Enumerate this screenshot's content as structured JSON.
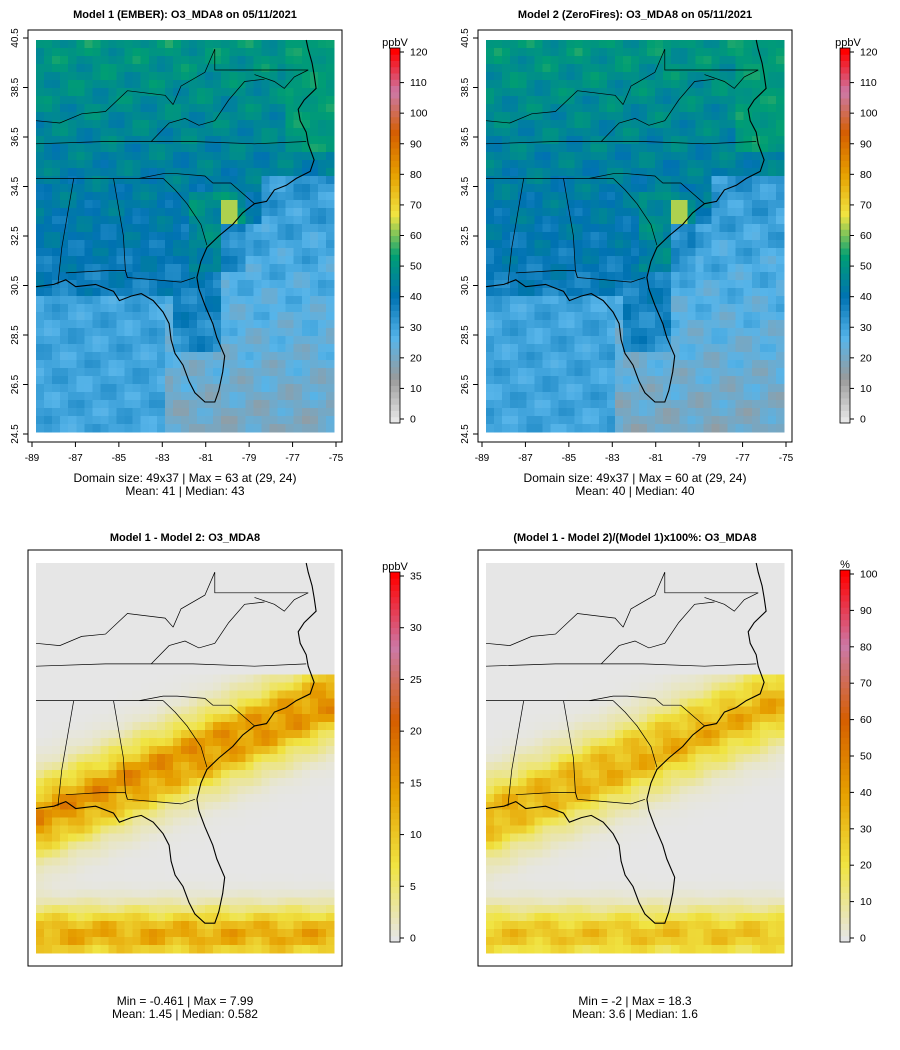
{
  "panels": [
    {
      "title": "Model 1 (EMBER): O3_MDA8 on 05/11/2021",
      "kind": "conc",
      "show_axes": true,
      "colorbar": {
        "unit": "ppbV",
        "ticks": [
          "0",
          "10",
          "20",
          "30",
          "40",
          "50",
          "60",
          "70",
          "80",
          "90",
          "100",
          "110",
          "120"
        ],
        "max": 120
      },
      "stats": {
        "line1": "Domain size: 49x37 | Max = 63 at (29, 24)",
        "line2": "Mean: 41 |  Median: 43"
      },
      "field": {
        "mean": 41,
        "max": 63
      }
    },
    {
      "title": "Model 2 (ZeroFires): O3_MDA8 on 05/11/2021",
      "kind": "conc",
      "show_axes": true,
      "colorbar": {
        "unit": "ppbV",
        "ticks": [
          "0",
          "10",
          "20",
          "30",
          "40",
          "50",
          "60",
          "70",
          "80",
          "90",
          "100",
          "110",
          "120"
        ],
        "max": 120
      },
      "stats": {
        "line1": "Domain size: 49x37 | Max = 60 at (29, 24)",
        "line2": "Mean: 40 |  Median: 40"
      },
      "field": {
        "mean": 40,
        "max": 60
      }
    },
    {
      "title": "Model 1 - Model 2: O3_MDA8",
      "kind": "diff",
      "show_axes": false,
      "colorbar": {
        "unit": "ppbV",
        "ticks": [
          "0",
          "5",
          "10",
          "15",
          "20",
          "25",
          "30",
          "35"
        ],
        "max": 35
      },
      "stats": {
        "line1": "Min = -0.461 | Max = 7.99",
        "line2": "Mean: 1.45 |  Median: 0.582"
      },
      "field": {
        "min": -0.461,
        "max": 7.99
      }
    },
    {
      "title": "(Model 1 - Model 2)/(Model 1)x100%: O3_MDA8",
      "kind": "pct",
      "show_axes": false,
      "colorbar": {
        "unit": "%",
        "ticks": [
          "0",
          "10",
          "20",
          "30",
          "40",
          "50",
          "60",
          "70",
          "80",
          "90",
          "100"
        ],
        "max": 100
      },
      "stats": {
        "line1": "Min = -2 | Max = 18.3",
        "line2": "Mean: 3.6 |  Median: 1.6"
      },
      "field": {
        "min": -2,
        "max": 18.3
      }
    }
  ],
  "axes": {
    "lat_ticks": [
      "24.5",
      "26.5",
      "28.5",
      "30.5",
      "32.5",
      "34.5",
      "36.5",
      "38.5",
      "40.5"
    ],
    "lon_ticks": [
      "-89",
      "-87",
      "-85",
      "-83",
      "-81",
      "-79",
      "-77",
      "-75"
    ]
  },
  "grid": {
    "cols": 37,
    "rows": 49
  },
  "palette": {
    "conc": [
      "#e6e6e6",
      "#9a9a9a",
      "#56b4e9",
      "#0072b2",
      "#009e73",
      "#f0e442",
      "#e69f00",
      "#d55e00",
      "#cc79a7",
      "#ff0000"
    ],
    "land_line": "#000000"
  }
}
